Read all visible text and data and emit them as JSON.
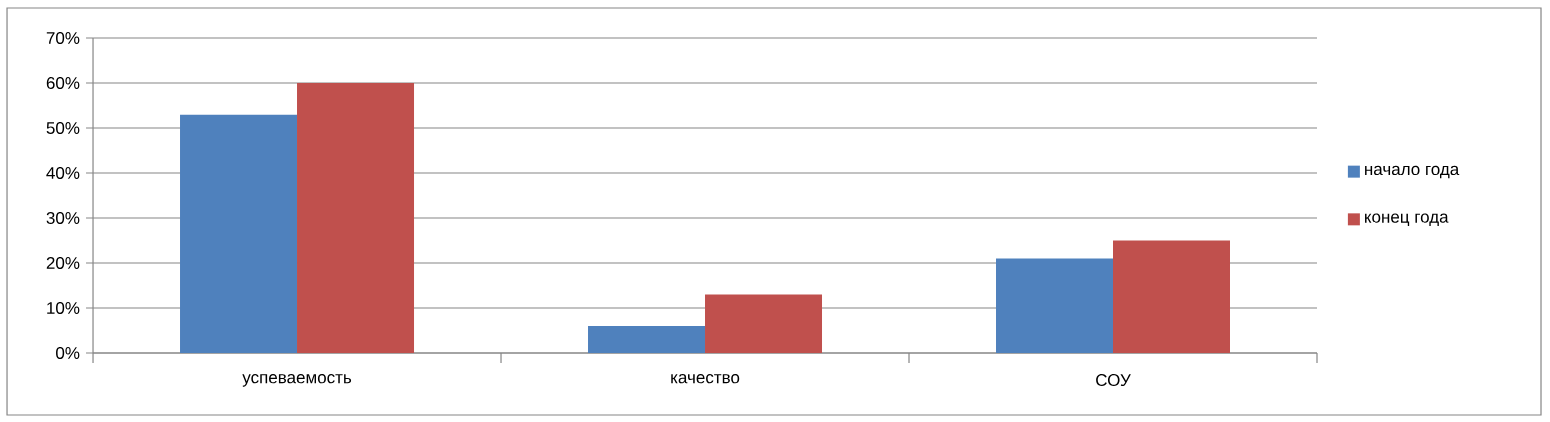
{
  "chart_data": {
    "type": "bar",
    "categories": [
      "успеваемость",
      "качество",
      "СОУ"
    ],
    "series": [
      {
        "name": "начало года",
        "color": "#4f81bd",
        "values": [
          53,
          6,
          21
        ]
      },
      {
        "name": "конец года",
        "color": "#c0504d",
        "values": [
          60,
          13,
          25
        ]
      }
    ],
    "ylim": [
      0,
      70
    ],
    "yticks": [
      {
        "value": 0,
        "label": "0%"
      },
      {
        "value": 10,
        "label": "10%"
      },
      {
        "value": 20,
        "label": "20%"
      },
      {
        "value": 30,
        "label": "30%"
      },
      {
        "value": 40,
        "label": "40%"
      },
      {
        "value": 50,
        "label": "50%"
      },
      {
        "value": 60,
        "label": "60%"
      },
      {
        "value": 70,
        "label": "70%"
      }
    ],
    "grid": "y",
    "legend": "right"
  }
}
